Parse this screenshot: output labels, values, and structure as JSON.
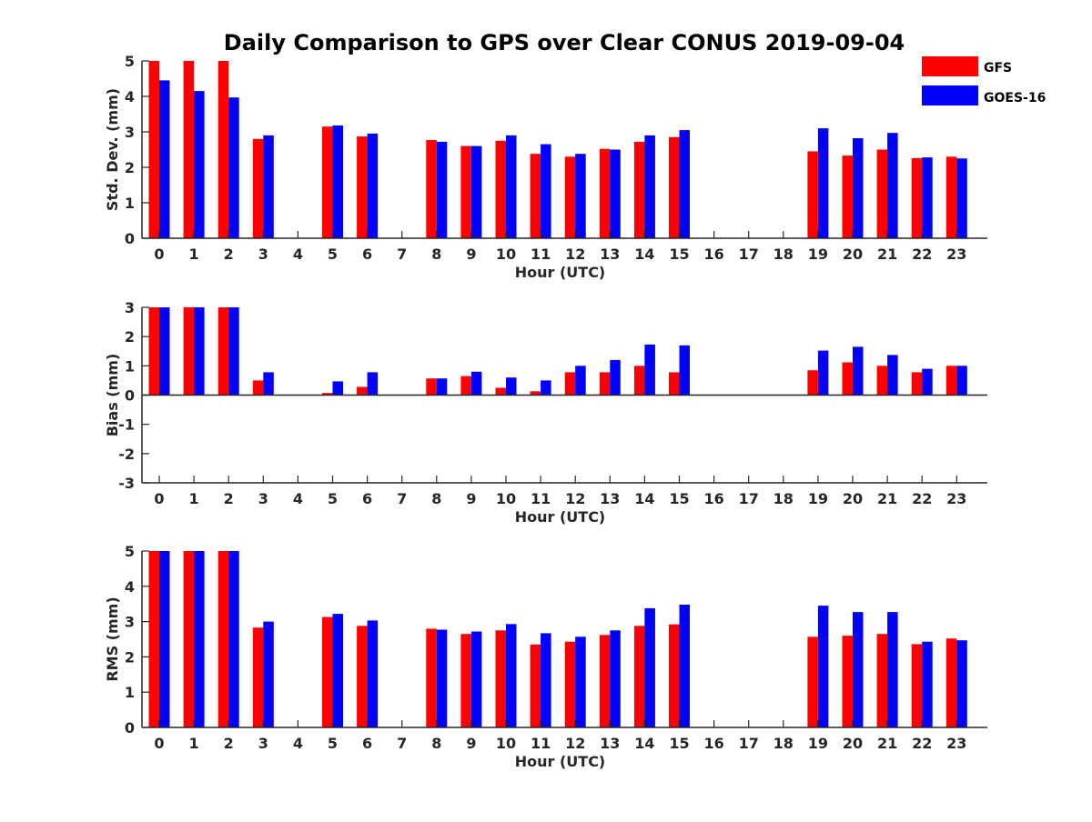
{
  "title": "Daily Comparison to GPS over Clear CONUS 2019-09-04",
  "legend": [
    {
      "label": "GFS",
      "color": "#ff0000"
    },
    {
      "label": "GOES-16",
      "color": "#0000ff"
    }
  ],
  "chart_data": [
    {
      "type": "bar",
      "title": "Daily Comparison to GPS over Clear CONUS 2019-09-04",
      "xlabel": "Hour (UTC)",
      "ylabel": "Std. Dev. (mm)",
      "ylim": [
        0,
        5
      ],
      "yticks": [
        0,
        1,
        2,
        3,
        4,
        5
      ],
      "categories": [
        "0",
        "1",
        "2",
        "3",
        "4",
        "5",
        "6",
        "7",
        "8",
        "9",
        "10",
        "11",
        "12",
        "13",
        "14",
        "15",
        "16",
        "17",
        "18",
        "19",
        "20",
        "21",
        "22",
        "23"
      ],
      "series": [
        {
          "name": "GFS",
          "color": "#ff0000",
          "values": [
            5.0,
            5.0,
            5.0,
            2.8,
            null,
            3.15,
            2.87,
            null,
            2.77,
            2.6,
            2.75,
            2.38,
            2.3,
            2.52,
            2.72,
            2.85,
            null,
            null,
            null,
            2.45,
            2.33,
            2.5,
            2.26,
            2.3
          ]
        },
        {
          "name": "GOES-16",
          "color": "#0000ff",
          "values": [
            4.45,
            4.15,
            3.97,
            2.9,
            null,
            3.18,
            2.95,
            null,
            2.72,
            2.6,
            2.9,
            2.65,
            2.38,
            2.5,
            2.9,
            3.05,
            null,
            null,
            null,
            3.1,
            2.82,
            2.97,
            2.28,
            2.25
          ]
        }
      ]
    },
    {
      "type": "bar",
      "xlabel": "Hour (UTC)",
      "ylabel": "Bias (mm)",
      "ylim": [
        -3,
        3
      ],
      "yticks": [
        -3,
        -2,
        -1,
        0,
        1,
        2,
        3
      ],
      "categories": [
        "0",
        "1",
        "2",
        "3",
        "4",
        "5",
        "6",
        "7",
        "8",
        "9",
        "10",
        "11",
        "12",
        "13",
        "14",
        "15",
        "16",
        "17",
        "18",
        "19",
        "20",
        "21",
        "22",
        "23"
      ],
      "series": [
        {
          "name": "GFS",
          "color": "#ff0000",
          "values": [
            3.0,
            3.0,
            3.0,
            0.5,
            null,
            0.07,
            0.28,
            null,
            0.57,
            0.65,
            0.25,
            0.13,
            0.78,
            0.78,
            1.0,
            0.78,
            null,
            null,
            null,
            0.85,
            1.12,
            1.0,
            0.78,
            1.0
          ]
        },
        {
          "name": "GOES-16",
          "color": "#0000ff",
          "values": [
            3.0,
            3.0,
            3.0,
            0.78,
            null,
            0.47,
            0.78,
            null,
            0.57,
            0.8,
            0.6,
            0.5,
            1.0,
            1.2,
            1.73,
            1.7,
            null,
            null,
            null,
            1.52,
            1.65,
            1.37,
            0.9,
            1.0
          ]
        }
      ]
    },
    {
      "type": "bar",
      "xlabel": "Hour (UTC)",
      "ylabel": "RMS (mm)",
      "ylim": [
        0,
        5
      ],
      "yticks": [
        0,
        1,
        2,
        3,
        4,
        5
      ],
      "categories": [
        "0",
        "1",
        "2",
        "3",
        "4",
        "5",
        "6",
        "7",
        "8",
        "9",
        "10",
        "11",
        "12",
        "13",
        "14",
        "15",
        "16",
        "17",
        "18",
        "19",
        "20",
        "21",
        "22",
        "23"
      ],
      "series": [
        {
          "name": "GFS",
          "color": "#ff0000",
          "values": [
            5.0,
            5.0,
            5.0,
            2.83,
            null,
            3.13,
            2.88,
            null,
            2.8,
            2.65,
            2.75,
            2.35,
            2.43,
            2.62,
            2.88,
            2.92,
            null,
            null,
            null,
            2.57,
            2.6,
            2.65,
            2.36,
            2.52
          ]
        },
        {
          "name": "GOES-16",
          "color": "#0000ff",
          "values": [
            5.0,
            5.0,
            5.0,
            3.0,
            null,
            3.22,
            3.03,
            null,
            2.77,
            2.72,
            2.93,
            2.67,
            2.57,
            2.75,
            3.38,
            3.48,
            null,
            null,
            null,
            3.45,
            3.27,
            3.27,
            2.43,
            2.47
          ]
        }
      ]
    }
  ]
}
